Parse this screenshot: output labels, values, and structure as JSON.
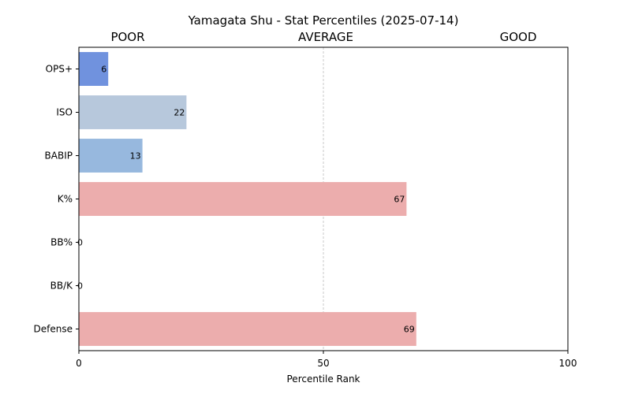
{
  "chart_data": {
    "type": "bar",
    "orientation": "horizontal",
    "title": "Yamagata Shu - Stat Percentiles (2025-07-14)",
    "xlabel": "Percentile Rank",
    "ylabel": "",
    "xlim": [
      0,
      100
    ],
    "xticks": [
      0,
      50,
      100
    ],
    "zone_labels": [
      "POOR",
      "AVERAGE",
      "GOOD"
    ],
    "reference_line": 50,
    "grid": false,
    "categories": [
      "OPS+",
      "ISO",
      "BABIP",
      "K%",
      "BB%",
      "BB/K",
      "Defense"
    ],
    "values": [
      6,
      22,
      13,
      67,
      0,
      0,
      69
    ],
    "colors": [
      "#7092de",
      "#b7c8dc",
      "#97b8de",
      "#ecadad",
      "#7092de",
      "#7092de",
      "#ecadad"
    ]
  }
}
